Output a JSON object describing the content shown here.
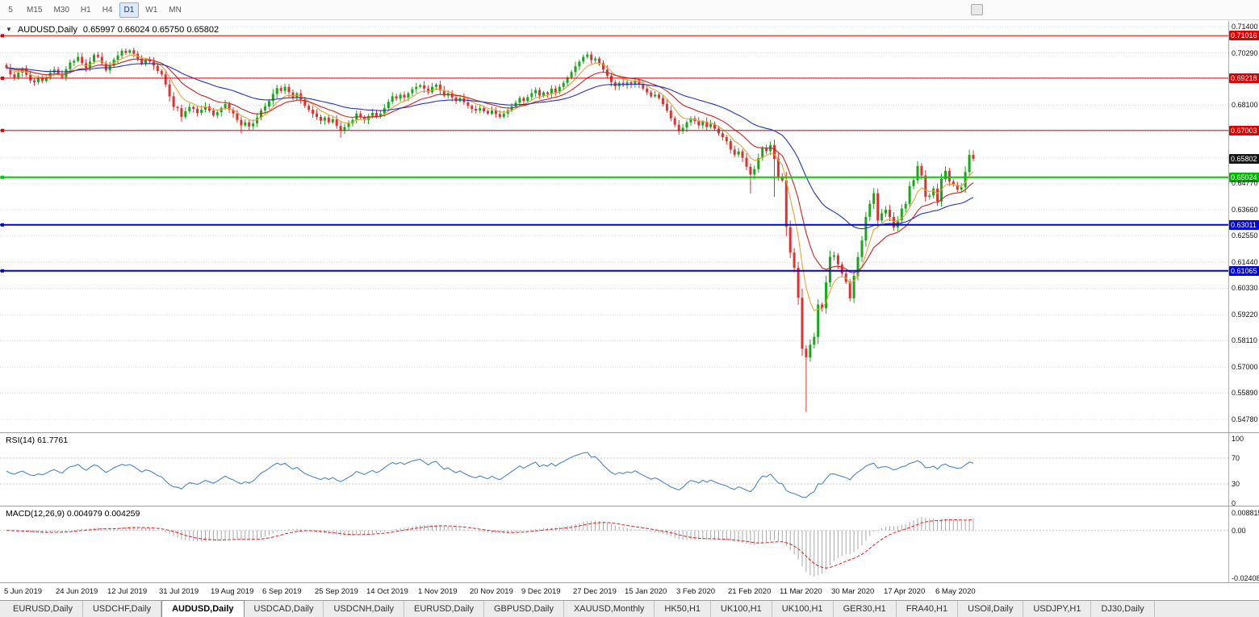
{
  "toolbar": {
    "timeframes": [
      "5",
      "M15",
      "M30",
      "H1",
      "H4",
      "D1",
      "W1",
      "MN"
    ],
    "selected": "D1"
  },
  "chart": {
    "symbol_title": "AUDUSD,Daily",
    "ohlc": "0.65997 0.66024 0.65750 0.65802",
    "collapse_icon": "▼"
  },
  "price_axis": {
    "labels": [
      {
        "text": "0.71400",
        "price": 0.714,
        "type": "plain"
      },
      {
        "text": "0.71016",
        "price": 0.71016,
        "type": "badge",
        "color": "#dd0000"
      },
      {
        "text": "0.70290",
        "price": 0.7029,
        "type": "plain"
      },
      {
        "text": "0.69218",
        "price": 0.69218,
        "type": "badge",
        "color": "#dd0000"
      },
      {
        "text": "0.68100",
        "price": 0.681,
        "type": "plain"
      },
      {
        "text": "0.67003",
        "price": 0.67003,
        "type": "badge",
        "color": "#dd0000"
      },
      {
        "text": "0.65802",
        "price": 0.65802,
        "type": "badge",
        "color": "#161616"
      },
      {
        "text": "0.65024",
        "price": 0.65024,
        "type": "badge",
        "color": "#00b400"
      },
      {
        "text": "0.64770",
        "price": 0.6477,
        "type": "plain"
      },
      {
        "text": "0.63660",
        "price": 0.6366,
        "type": "plain"
      },
      {
        "text": "0.63011",
        "price": 0.63011,
        "type": "badge",
        "color": "#0000e0"
      },
      {
        "text": "0.62550",
        "price": 0.6255,
        "type": "plain"
      },
      {
        "text": "0.61440",
        "price": 0.6144,
        "type": "plain"
      },
      {
        "text": "0.61065",
        "price": 0.61065,
        "type": "badge",
        "color": "#0000e0"
      },
      {
        "text": "0.60330",
        "price": 0.6033,
        "type": "plain"
      },
      {
        "text": "0.59220",
        "price": 0.5922,
        "type": "plain"
      },
      {
        "text": "0.58110",
        "price": 0.5811,
        "type": "plain"
      },
      {
        "text": "0.57000",
        "price": 0.57,
        "type": "plain"
      },
      {
        "text": "0.55890",
        "price": 0.5589,
        "type": "plain"
      },
      {
        "text": "0.54780",
        "price": 0.5478,
        "type": "plain"
      }
    ]
  },
  "hlines": [
    {
      "price": 0.71016,
      "color": "#dd0000",
      "width": 1,
      "name": "resistance-line-0-71016"
    },
    {
      "price": 0.69218,
      "color": "#dd0000",
      "width": 1,
      "name": "resistance-line-0-69218"
    },
    {
      "price": 0.67003,
      "color": "#dd0000",
      "width": 1,
      "name": "resistance-line-0-67003"
    },
    {
      "price": 0.65024,
      "color": "#00cc00",
      "width": 2,
      "name": "support-line-0-65024"
    },
    {
      "price": 0.63011,
      "color": "#0000e0",
      "width": 2,
      "name": "support-line-0-63011"
    },
    {
      "price": 0.61065,
      "color": "#0000e0",
      "width": 2,
      "name": "support-line-0-61065"
    }
  ],
  "rsi": {
    "text": "RSI(14) 61.7761",
    "value": 61.7761,
    "color": "#4a86c8",
    "levels": [
      70,
      30
    ],
    "axis_labels": [
      {
        "text": "100",
        "value": 100
      },
      {
        "text": "70",
        "value": 70
      },
      {
        "text": "30",
        "value": 30
      },
      {
        "text": "0",
        "value": 0
      }
    ]
  },
  "macd": {
    "text": "MACD(12,26,9) 0.004979 0.004259",
    "values": [
      0.004979,
      0.004259
    ],
    "hist_color": "#a8a8a8",
    "signal_color": "#dd2222",
    "range": [
      -0.02408,
      0.008815
    ],
    "axis_labels": [
      {
        "text": "0.008815",
        "value": 0.008815
      },
      {
        "text": "0.00",
        "value": 0
      },
      {
        "text": "-0.02408",
        "value": -0.02408
      }
    ]
  },
  "tabs": [
    {
      "label": "EURUSD,Daily",
      "active": false
    },
    {
      "label": "USDCHF,Daily",
      "active": false
    },
    {
      "label": "AUDUSD,Daily",
      "active": true
    },
    {
      "label": "USDCAD,Daily",
      "active": false
    },
    {
      "label": "USDCNH,Daily",
      "active": false
    },
    {
      "label": "EURUSD,Daily",
      "active": false
    },
    {
      "label": "GBPUSD,Daily",
      "active": false
    },
    {
      "label": "XAUUSD,Monthly",
      "active": false
    },
    {
      "label": "HK50,H1",
      "active": false
    },
    {
      "label": "UK100,H1",
      "active": false
    },
    {
      "label": "UK100,H1",
      "active": false
    },
    {
      "label": "GER30,H1",
      "active": false
    },
    {
      "label": "FRA40,H1",
      "active": false
    },
    {
      "label": "USOil,Daily",
      "active": false
    },
    {
      "label": "USDJPY,H1",
      "active": false
    },
    {
      "label": "DJ30,Daily",
      "active": false
    }
  ],
  "chart_data": {
    "type": "candlestick",
    "symbol": "AUDUSD",
    "timeframe": "Daily",
    "title": "AUDUSD,Daily",
    "y_range": [
      0.5478,
      0.714
    ],
    "grid": {
      "min": 0.5478,
      "step": 0.01108,
      "count": 16
    },
    "x_labels": [
      {
        "text": "5 Jun 2019",
        "idx": 0
      },
      {
        "text": "24 Jun 2019",
        "idx": 13
      },
      {
        "text": "12 Jul 2019",
        "idx": 26
      },
      {
        "text": "31 Jul 2019",
        "idx": 39
      },
      {
        "text": "19 Aug 2019",
        "idx": 52
      },
      {
        "text": "6 Sep 2019",
        "idx": 65
      },
      {
        "text": "25 Sep 2019",
        "idx": 78
      },
      {
        "text": "14 Oct 2019",
        "idx": 91
      },
      {
        "text": "1 Nov 2019",
        "idx": 104
      },
      {
        "text": "20 Nov 2019",
        "idx": 117
      },
      {
        "text": "9 Dec 2019",
        "idx": 130
      },
      {
        "text": "27 Dec 2019",
        "idx": 143
      },
      {
        "text": "15 Jan 2020",
        "idx": 156
      },
      {
        "text": "3 Feb 2020",
        "idx": 169
      },
      {
        "text": "21 Feb 2020",
        "idx": 182
      },
      {
        "text": "11 Mar 2020",
        "idx": 195
      },
      {
        "text": "30 Mar 2020",
        "idx": 208
      },
      {
        "text": "17 Apr 2020",
        "idx": 221
      },
      {
        "text": "6 May 2020",
        "idx": 234
      }
    ],
    "closes": [
      0.6966,
      0.6938,
      0.6925,
      0.6945,
      0.6959,
      0.6936,
      0.6912,
      0.6905,
      0.6921,
      0.691,
      0.6925,
      0.6945,
      0.6958,
      0.694,
      0.6926,
      0.696,
      0.6988,
      0.6995,
      0.7012,
      0.6985,
      0.6965,
      0.6992,
      0.702,
      0.7012,
      0.6985,
      0.6955,
      0.6975,
      0.7,
      0.7018,
      0.7038,
      0.7029,
      0.704,
      0.7025,
      0.7005,
      0.6982,
      0.7,
      0.6992,
      0.6975,
      0.6952,
      0.6938,
      0.6895,
      0.6845,
      0.68,
      0.6795,
      0.6758,
      0.6782,
      0.68,
      0.6792,
      0.6775,
      0.6788,
      0.6802,
      0.6785,
      0.6765,
      0.6778,
      0.6795,
      0.6812,
      0.6788,
      0.6772,
      0.6745,
      0.6722,
      0.6735,
      0.6718,
      0.673,
      0.6755,
      0.6785,
      0.6802,
      0.6825,
      0.6855,
      0.688,
      0.6868,
      0.6885,
      0.6862,
      0.684,
      0.6858,
      0.6832,
      0.6805,
      0.6788,
      0.6772,
      0.6758,
      0.6742,
      0.6755,
      0.6735,
      0.6748,
      0.672,
      0.6702,
      0.6715,
      0.673,
      0.6745,
      0.6772,
      0.6758,
      0.6745,
      0.6762,
      0.6775,
      0.6758,
      0.6772,
      0.6795,
      0.6822,
      0.6845,
      0.6835,
      0.6852,
      0.684,
      0.6858,
      0.6875,
      0.6885,
      0.6892,
      0.6878,
      0.6862,
      0.6885,
      0.6895,
      0.687,
      0.6848,
      0.6858,
      0.684,
      0.6825,
      0.6838,
      0.682,
      0.6805,
      0.6792,
      0.6785,
      0.6795,
      0.6782,
      0.6772,
      0.6785,
      0.677,
      0.6758,
      0.6772,
      0.6785,
      0.6802,
      0.6818,
      0.6838,
      0.6825,
      0.6842,
      0.6858,
      0.6872,
      0.6848,
      0.6862,
      0.6855,
      0.6878,
      0.6862,
      0.6885,
      0.6902,
      0.6925,
      0.6948,
      0.6972,
      0.6992,
      0.7012,
      0.7022,
      0.6998,
      0.7005,
      0.6985,
      0.6958,
      0.6932,
      0.6905,
      0.6888,
      0.6902,
      0.6892,
      0.6905,
      0.6898,
      0.6912,
      0.6895,
      0.6878,
      0.6862,
      0.6845,
      0.6852,
      0.6838,
      0.6812,
      0.6785,
      0.6752,
      0.6725,
      0.6698,
      0.6712,
      0.6735,
      0.6752,
      0.674,
      0.6722,
      0.6738,
      0.6715,
      0.6728,
      0.6708,
      0.6688,
      0.6672,
      0.6655,
      0.662,
      0.6598,
      0.6612,
      0.6585,
      0.6547,
      0.6514,
      0.6537,
      0.6584,
      0.6625,
      0.6613,
      0.6639,
      0.6581,
      0.6504,
      0.6489,
      0.6292,
      0.6184,
      0.612,
      0.5993,
      0.5777,
      0.574,
      0.5794,
      0.5827,
      0.5964,
      0.5948,
      0.6058,
      0.6166,
      0.6172,
      0.6134,
      0.6095,
      0.606,
      0.599,
      0.6085,
      0.6165,
      0.6235,
      0.6335,
      0.639,
      0.6435,
      0.632,
      0.635,
      0.6365,
      0.6335,
      0.629,
      0.632,
      0.637,
      0.639,
      0.6465,
      0.649,
      0.655,
      0.651,
      0.642,
      0.6425,
      0.6455,
      0.64,
      0.6495,
      0.653,
      0.6485,
      0.647,
      0.645,
      0.646,
      0.6525,
      0.6597,
      0.65802
    ],
    "wick_overrides": {
      "31": {
        "hi": 0.7045
      },
      "59": {
        "lo": 0.6688
      },
      "84": {
        "lo": 0.667
      },
      "146": {
        "hi": 0.7035
      },
      "187": {
        "lo": 0.6434
      },
      "193": {
        "lo": 0.642
      },
      "201": {
        "lo": 0.551
      },
      "243": {
        "hi": 0.6616
      }
    },
    "candle_colors": {
      "up": "#16a71a",
      "down": "#e03030"
    },
    "moving_averages": [
      {
        "period": 7,
        "color": "#e8a33c"
      },
      {
        "period": 16,
        "color": "#cc2222"
      },
      {
        "period": 40,
        "color": "#2233bb"
      }
    ]
  }
}
